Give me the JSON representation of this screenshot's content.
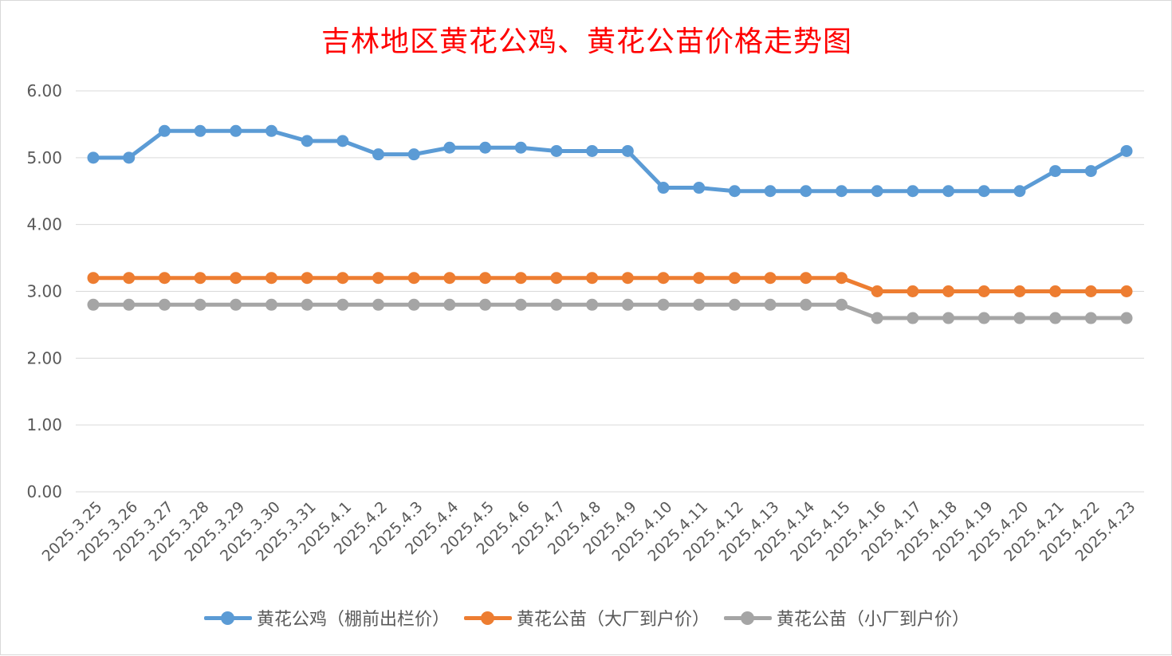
{
  "chart_data": {
    "type": "line",
    "title": "吉林地区黄花公鸡、黄花公苗价格走势图",
    "categories": [
      "2025.3.25",
      "2025.3.26",
      "2025.3.27",
      "2025.3.28",
      "2025.3.29",
      "2025.3.30",
      "2025.3.31",
      "2025.4.1",
      "2025.4.2",
      "2025.4.3",
      "2025.4.4",
      "2025.4.5",
      "2025.4.6",
      "2025.4.7",
      "2025.4.8",
      "2025.4.9",
      "2025.4.10",
      "2025.4.11",
      "2025.4.12",
      "2025.4.13",
      "2025.4.14",
      "2025.4.15",
      "2025.4.16",
      "2025.4.17",
      "2025.4.18",
      "2025.4.19",
      "2025.4.20",
      "2025.4.21",
      "2025.4.22",
      "2025.4.23"
    ],
    "series": [
      {
        "name": "黄花公鸡（棚前出栏价）",
        "color": "#5b9bd5",
        "values": [
          5.0,
          5.0,
          5.4,
          5.4,
          5.4,
          5.4,
          5.25,
          5.25,
          5.05,
          5.05,
          5.15,
          5.15,
          5.15,
          5.1,
          5.1,
          5.1,
          4.55,
          4.55,
          4.5,
          4.5,
          4.5,
          4.5,
          4.5,
          4.5,
          4.5,
          4.5,
          4.5,
          4.8,
          4.8,
          5.1
        ]
      },
      {
        "name": "黄花公苗（大厂到户价）",
        "color": "#ed7d31",
        "values": [
          3.2,
          3.2,
          3.2,
          3.2,
          3.2,
          3.2,
          3.2,
          3.2,
          3.2,
          3.2,
          3.2,
          3.2,
          3.2,
          3.2,
          3.2,
          3.2,
          3.2,
          3.2,
          3.2,
          3.2,
          3.2,
          3.2,
          3.0,
          3.0,
          3.0,
          3.0,
          3.0,
          3.0,
          3.0,
          3.0
        ]
      },
      {
        "name": "黄花公苗（小厂到户价）",
        "color": "#a5a5a5",
        "values": [
          2.8,
          2.8,
          2.8,
          2.8,
          2.8,
          2.8,
          2.8,
          2.8,
          2.8,
          2.8,
          2.8,
          2.8,
          2.8,
          2.8,
          2.8,
          2.8,
          2.8,
          2.8,
          2.8,
          2.8,
          2.8,
          2.8,
          2.6,
          2.6,
          2.6,
          2.6,
          2.6,
          2.6,
          2.6,
          2.6
        ]
      }
    ],
    "ylim": [
      0,
      6
    ],
    "yticks": [
      "0.00",
      "1.00",
      "2.00",
      "3.00",
      "4.00",
      "5.00",
      "6.00"
    ],
    "grid": true,
    "legend_position": "bottom",
    "title_color": "#ff0000"
  }
}
